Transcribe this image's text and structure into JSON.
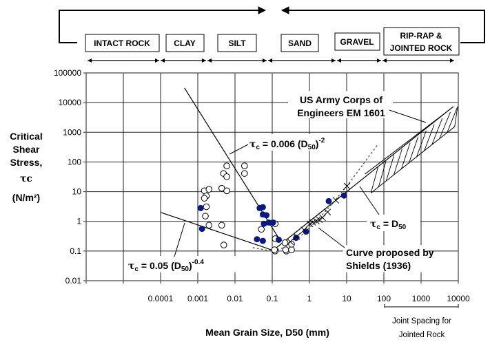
{
  "header": {
    "categories": [
      "INTACT ROCK",
      "CLAY",
      "SILT",
      "SAND",
      "GRAVEL",
      "RIP-RAP &",
      "JOINTED ROCK"
    ]
  },
  "chart_data": {
    "type": "scatter",
    "title": "",
    "xlabel": "Mean Grain Size, D50 (mm)",
    "ylabel": [
      "Critical",
      "Shear",
      "Stress,",
      "τc",
      "(N/m²)"
    ],
    "x_scale": "log",
    "y_scale": "log",
    "xlim": [
      1e-06,
      10000
    ],
    "ylim": [
      0.01,
      100000
    ],
    "grid": true,
    "x_ticks": [
      "0.0001",
      "0.001",
      "0.01",
      "0.1",
      "1",
      "10",
      "100",
      "1000",
      "10000"
    ],
    "x_tick_values": [
      0.0001,
      0.001,
      0.01,
      0.1,
      1,
      10,
      100,
      1000,
      10000
    ],
    "y_ticks": [
      "100000",
      "10000",
      "1000",
      "100",
      "10",
      "1",
      "0.1",
      "0.01"
    ],
    "y_tick_values": [
      100000,
      10000,
      1000,
      100,
      10,
      1,
      0.1,
      0.01
    ],
    "x_sublabel": [
      "Joint Spacing for",
      "Jointed Rock"
    ],
    "series": [
      {
        "marker": "open-circle",
        "points": [
          [
            0.006,
            74
          ],
          [
            0.0049,
            41
          ],
          [
            0.006,
            32
          ],
          [
            0.018,
            74
          ],
          [
            0.018,
            41
          ],
          [
            0.0015,
            10.7
          ],
          [
            0.002,
            12
          ],
          [
            0.0017,
            7.2
          ],
          [
            0.0015,
            6
          ],
          [
            0.0017,
            3.1
          ],
          [
            0.0016,
            1.5
          ],
          [
            0.002,
            0.74
          ],
          [
            0.0044,
            13
          ],
          [
            0.006,
            10.7
          ],
          [
            0.0044,
            0.74
          ],
          [
            0.005,
            0.16
          ],
          [
            0.051,
            0.54
          ],
          [
            0.12,
            0.83
          ],
          [
            0.12,
            0.26
          ],
          [
            0.12,
            0.1
          ],
          [
            0.24,
            0.1
          ],
          [
            0.22,
            0.19
          ],
          [
            0.115,
            0.11
          ],
          [
            0.23,
            0.11
          ],
          [
            0.33,
            0.11
          ],
          [
            0.33,
            0.17
          ]
        ]
      },
      {
        "marker": "filled-circle",
        "color": "#0b1a7a",
        "points": [
          [
            0.0012,
            2.8
          ],
          [
            0.0013,
            0.56
          ],
          [
            0.046,
            2.8
          ],
          [
            0.056,
            3.0
          ],
          [
            0.056,
            1.7
          ],
          [
            0.07,
            1.6
          ],
          [
            0.06,
            0.83
          ],
          [
            0.081,
            0.91
          ],
          [
            0.105,
            0.91
          ],
          [
            0.039,
            0.25
          ],
          [
            0.056,
            0.22
          ],
          [
            0.15,
            0.24
          ],
          [
            0.44,
            0.28
          ],
          [
            0.81,
            0.45
          ],
          [
            3.3,
            4.8
          ],
          [
            8.5,
            7.4
          ]
        ]
      },
      {
        "marker": "cross",
        "points": [
          [
            0.3,
            0.2
          ],
          [
            0.45,
            0.3
          ],
          [
            0.7,
            0.5
          ],
          [
            1.0,
            0.8
          ],
          [
            1.2,
            0.9
          ],
          [
            1.5,
            1.0
          ],
          [
            1.8,
            1.1
          ],
          [
            2.2,
            1.3
          ],
          [
            3,
            2
          ],
          [
            5,
            5
          ],
          [
            10,
            15
          ]
        ]
      }
    ],
    "lines": [
      {
        "label": "τc = 0.006 (D50)^-2",
        "style": "solid",
        "points": [
          [
            0.00044,
            31000
          ],
          [
            0.15,
            0.27
          ]
        ]
      },
      {
        "label": "τc = 0.05 (D50)^-0.4",
        "style": "solid",
        "points": [
          [
            0.0001,
            2.0
          ],
          [
            0.12,
            0.1
          ]
        ]
      },
      {
        "label": "τc = D50",
        "style": "solid",
        "points": [
          [
            0.1,
            0.1
          ],
          [
            7400,
            7400
          ]
        ]
      },
      {
        "label": "Curve proposed by Shields (1936)",
        "style": "dashed",
        "points": [
          [
            0.03,
            0.13
          ],
          [
            0.1,
            0.1
          ],
          [
            0.3,
            0.15
          ],
          [
            1,
            0.6
          ],
          [
            3,
            2.5
          ],
          [
            10,
            15
          ],
          [
            70,
            400
          ]
        ]
      },
      {
        "label": "US Army Corps of Engineers EM 1601",
        "style": "hatched-band",
        "upper": [
          [
            31,
            39
          ],
          [
            7400,
            7300
          ]
        ],
        "lower": [
          [
            45,
            9
          ],
          [
            8000,
            1550
          ]
        ]
      }
    ],
    "annotations": {
      "corps": [
        "US Army Corps of",
        "Engineers EM 1601"
      ],
      "steep_pre": "τ",
      "steep_sub": "c",
      "steep_mid": " = 0.006 (D",
      "steep_sub2": "50",
      "steep_end": ")",
      "steep_sup": "-2",
      "flat_pre": "τ",
      "flat_sub": "c",
      "flat_mid": " = 0.05 (D",
      "flat_sub2": "50",
      "flat_end": ")",
      "flat_sup": "-0.4",
      "tcd_pre": "τ",
      "tcd_sub": "c",
      "tcd_mid": " = D",
      "tcd_sub2": "50",
      "shields": [
        "Curve proposed by",
        "Shields (1936)"
      ]
    }
  }
}
